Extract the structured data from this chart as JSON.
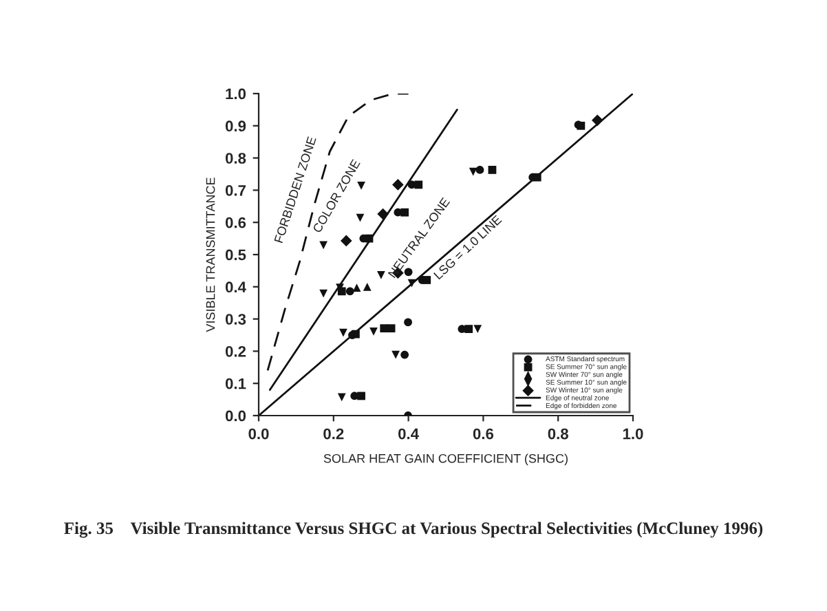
{
  "chart_data": {
    "type": "scatter",
    "xlabel": "SOLAR HEAT GAIN COEFFICIENT (SHGC)",
    "ylabel": "VISIBLE TRANSMITTANCE",
    "xlim": [
      0,
      1
    ],
    "ylim": [
      0,
      1
    ],
    "xticks": [
      {
        "value": 0,
        "label": "0.0"
      },
      {
        "value": 0.2,
        "label": "0.2"
      },
      {
        "value": 0.4,
        "label": "0.4"
      },
      {
        "value": 0.6,
        "label": "0.6"
      },
      {
        "value": 0.8,
        "label": "0.8"
      },
      {
        "value": 1,
        "label": "1.0"
      }
    ],
    "yticks": [
      {
        "value": 0,
        "label": "0.0"
      },
      {
        "value": 0.1,
        "label": "0.1"
      },
      {
        "value": 0.2,
        "label": "0.2"
      },
      {
        "value": 0.3,
        "label": "0.3"
      },
      {
        "value": 0.4,
        "label": "0.4"
      },
      {
        "value": 0.5,
        "label": "0.5"
      },
      {
        "value": 0.6,
        "label": "0.6"
      },
      {
        "value": 0.7,
        "label": "0.7"
      },
      {
        "value": 0.8,
        "label": "0.8"
      },
      {
        "value": 0.9,
        "label": "0.9"
      },
      {
        "value": 1,
        "label": "1.0"
      }
    ],
    "grid": false,
    "legend": "bottom right",
    "series": [
      {
        "name": "ASTM Standard spectrum",
        "color": "#111111",
        "marker": "circle",
        "x": [
          0.244,
          0.25,
          0.256,
          0.28,
          0.409,
          0.372,
          0.4,
          0.39,
          0.399,
          0.399,
          0.437,
          0.591,
          0.543,
          0.732,
          0.854
        ],
        "values": [
          0.386,
          0.25,
          0.061,
          0.55,
          0.717,
          0.631,
          0.446,
          0.189,
          0.29,
          0.0,
          0.421,
          0.763,
          0.269,
          0.74,
          0.903
        ]
      },
      {
        "name": "SE Summer 70° sun angle",
        "color": "#111111",
        "marker": "square",
        "x": [
          0.222,
          0.259,
          0.274,
          0.295,
          0.335,
          0.354,
          0.427,
          0.39,
          0.449,
          0.624,
          0.561,
          0.744,
          0.861
        ],
        "values": [
          0.386,
          0.253,
          0.061,
          0.55,
          0.271,
          0.271,
          0.717,
          0.631,
          0.421,
          0.763,
          0.269,
          0.74,
          0.9
        ]
      },
      {
        "name": "SW Winter 70° sun angle",
        "color": "#111111",
        "marker": "triangle",
        "x": [
          0.262,
          0.29
        ],
        "values": [
          0.397,
          0.4
        ]
      },
      {
        "name": "SE Summer 10° sun angle",
        "color": "#111111",
        "marker": "triangle_down",
        "x": [
          0.173,
          0.173,
          0.217,
          0.226,
          0.222,
          0.274,
          0.271,
          0.327,
          0.307,
          0.366,
          0.409,
          0.573,
          0.585
        ],
        "values": [
          0.529,
          0.379,
          0.397,
          0.257,
          0.057,
          0.714,
          0.614,
          0.436,
          0.261,
          0.189,
          0.411,
          0.757,
          0.269
        ]
      },
      {
        "name": "SW Winter 10° sun angle",
        "color": "#111111",
        "marker": "diamond",
        "x": [
          0.234,
          0.332,
          0.372,
          0.372,
          0.905
        ],
        "values": [
          0.543,
          0.626,
          0.717,
          0.443,
          0.917
        ]
      },
      {
        "name": "Edge of neutral zone",
        "type": "line",
        "line_style": "solid",
        "color": "#111111",
        "x": [
          0.03,
          0.53
        ],
        "values": [
          0.08,
          0.95
        ]
      },
      {
        "name": "Edge of forbidden zone",
        "type": "line",
        "line_style": "dashed",
        "color": "#111111",
        "x": [
          0.024,
          0.07,
          0.11,
          0.15,
          0.19,
          0.24,
          0.3,
          0.36,
          0.4
        ],
        "values": [
          0.14,
          0.33,
          0.48,
          0.66,
          0.82,
          0.93,
          0.98,
          1.0,
          1.0
        ]
      },
      {
        "type": "line",
        "line_style": "solid",
        "color": "#111111",
        "x": [
          0,
          1
        ],
        "values": [
          0,
          1
        ]
      }
    ],
    "annotations": [
      "FORBIDDEN ZONE",
      "COLOR ZONE",
      "NEUTRAL ZONE",
      "LSG = 1.0 LINE",
      "Fig. 35    Visible Transmittance Versus SHGC at Various Spectral Selectivities (McCluney 1996)"
    ]
  }
}
